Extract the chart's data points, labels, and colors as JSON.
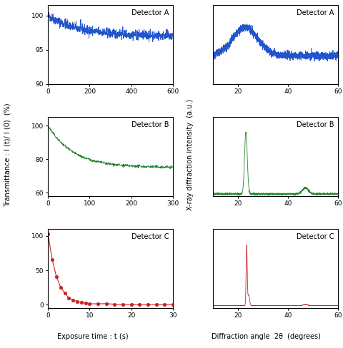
{
  "color_A": "#2255cc",
  "color_B": "#228833",
  "color_C": "#cc2222",
  "label_A": "Detector A",
  "label_B": "Detector B",
  "label_C": "Detector C",
  "trans_A": {
    "xmin": 0,
    "xmax": 600,
    "xticks": [
      0,
      200,
      400,
      600
    ],
    "ymin": 90,
    "ymax": 101.5,
    "yticks": [
      90,
      95,
      100
    ]
  },
  "trans_B": {
    "xmin": 0,
    "xmax": 300,
    "xticks": [
      0,
      100,
      200,
      300
    ],
    "ymin": 58,
    "ymax": 105,
    "yticks": [
      60,
      80,
      100
    ]
  },
  "trans_C": {
    "xmin": 0,
    "xmax": 30,
    "xticks": [
      0,
      10,
      20,
      30
    ],
    "ymin": -5,
    "ymax": 110,
    "yticks": [
      0,
      50,
      100
    ]
  },
  "xrd_A": {
    "xmin": 10,
    "xmax": 60,
    "xticks": [
      20,
      40,
      60
    ],
    "ymin": 0.0,
    "ymax": 0.5
  },
  "xrd_B": {
    "xmin": 10,
    "xmax": 60,
    "xticks": [
      20,
      40,
      60
    ],
    "ymin": 0.0,
    "ymax": 7.0
  },
  "xrd_C": {
    "xmin": 10,
    "xmax": 60,
    "xticks": [
      20,
      40,
      60
    ],
    "ymin": -0.5,
    "ymax": 18.0
  },
  "xlabel_left": "Exposure time : t (s)",
  "xlabel_right": "Diffraction angle  2θ  (degrees)",
  "ylabel_left": "Transmittance : I (t)/ I (0)  (%)",
  "ylabel_right": "X-ray diffraction intensity  (a.u.)"
}
